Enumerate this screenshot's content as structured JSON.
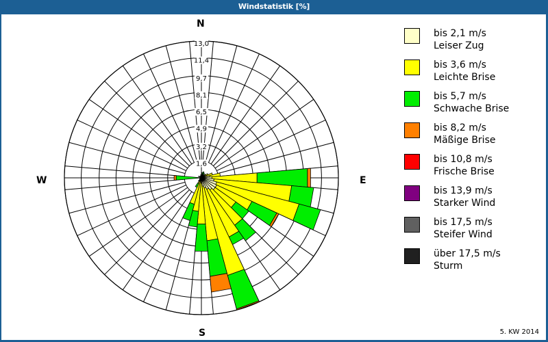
{
  "window": {
    "title": "Windstatistik [%]"
  },
  "footer": {
    "text": "5. KW 2014"
  },
  "compass": {
    "north": "N",
    "east": "E",
    "south": "S",
    "west": "W"
  },
  "chart_data": {
    "type": "wind-rose (polar stacked bar)",
    "title": "Windstatistik [%]",
    "unit": "%",
    "radial_max": 13.0,
    "ring_labels": [
      "1,6",
      "3,2",
      "4,9",
      "6,5",
      "8,1",
      "9,7",
      "11,4",
      "13,0"
    ],
    "ring_values": [
      1.6,
      3.2,
      4.9,
      6.5,
      8.1,
      9.7,
      11.4,
      13.0
    ],
    "sector_width_deg": 10,
    "spokes": 36,
    "grid": true,
    "legend_position": "right",
    "classes": [
      {
        "label": "bis 2,1 m/s",
        "name": "Leiser Zug",
        "color": "#ffffc8"
      },
      {
        "label": "bis 3,6 m/s",
        "name": "Leichte Brise",
        "color": "#ffff00"
      },
      {
        "label": "bis 5,7 m/s",
        "name": "Schwache Brise",
        "color": "#00ee00"
      },
      {
        "label": "bis 8,2 m/s",
        "name": "Mäßige Brise",
        "color": "#ff8000"
      },
      {
        "label": "bis 10,8 m/s",
        "name": "Frische Brise",
        "color": "#ff0000"
      },
      {
        "label": "bis 13,9 m/s",
        "name": "Starker Wind",
        "color": "#800080"
      },
      {
        "label": "bis 17,5 m/s",
        "name": "Steifer Wind",
        "color": "#606060"
      },
      {
        "label": "über 17,5 m/s",
        "name": "Sturm",
        "color": "#202020"
      }
    ],
    "sectors": [
      {
        "direction_deg": 10,
        "values": [
          0.2,
          0.1,
          0.2,
          0,
          0,
          0,
          0,
          0
        ]
      },
      {
        "direction_deg": 20,
        "values": [
          0.2,
          0.1,
          0.3,
          0,
          0,
          0,
          0,
          0
        ]
      },
      {
        "direction_deg": 30,
        "values": [
          0.2,
          0.1,
          0.2,
          0,
          0,
          0,
          0,
          0
        ]
      },
      {
        "direction_deg": 40,
        "values": [
          0.2,
          0.1,
          0,
          0,
          0,
          0,
          0,
          0
        ]
      },
      {
        "direction_deg": 50,
        "values": [
          0.3,
          0.2,
          0,
          0,
          0,
          0,
          0,
          0
        ]
      },
      {
        "direction_deg": 60,
        "values": [
          0.4,
          0.3,
          0,
          0,
          0,
          0,
          0,
          0
        ]
      },
      {
        "direction_deg": 70,
        "values": [
          0.5,
          0.6,
          0,
          0,
          0,
          0,
          0,
          0
        ]
      },
      {
        "direction_deg": 80,
        "values": [
          0.8,
          1.0,
          0,
          0,
          0,
          0,
          0,
          0
        ]
      },
      {
        "direction_deg": 90,
        "values": [
          1.0,
          4.3,
          4.8,
          0.3,
          0,
          0,
          0,
          0
        ]
      },
      {
        "direction_deg": 100,
        "values": [
          1.2,
          7.4,
          2.1,
          0,
          0,
          0,
          0,
          0
        ]
      },
      {
        "direction_deg": 110,
        "values": [
          1.5,
          8.1,
          2.1,
          0,
          0,
          0,
          0,
          0
        ]
      },
      {
        "direction_deg": 120,
        "values": [
          1.6,
          3.7,
          2.6,
          0.2,
          0,
          0,
          0,
          0
        ]
      },
      {
        "direction_deg": 130,
        "values": [
          1.6,
          2.4,
          1.5,
          0,
          0,
          0,
          0,
          0
        ]
      },
      {
        "direction_deg": 140,
        "values": [
          1.4,
          4.1,
          1.8,
          0,
          0,
          0,
          0,
          0
        ]
      },
      {
        "direction_deg": 150,
        "values": [
          1.2,
          5.0,
          0.8,
          0,
          0,
          0,
          0,
          0
        ]
      },
      {
        "direction_deg": 160,
        "values": [
          1.0,
          8.6,
          3.3,
          0.1,
          0,
          0,
          0,
          0
        ]
      },
      {
        "direction_deg": 170,
        "values": [
          0.8,
          5.2,
          3.4,
          1.5,
          0,
          0,
          0,
          0
        ]
      },
      {
        "direction_deg": 180,
        "values": [
          0.5,
          3.9,
          2.6,
          0,
          0,
          0,
          0,
          0
        ]
      },
      {
        "direction_deg": 190,
        "values": [
          0.3,
          2.9,
          1.5,
          0,
          0,
          0,
          0,
          0
        ]
      },
      {
        "direction_deg": 200,
        "values": [
          0.2,
          2.4,
          1.6,
          0,
          0,
          0,
          0,
          0
        ]
      },
      {
        "direction_deg": 210,
        "values": [
          0.1,
          0.5,
          0.4,
          0,
          0,
          0,
          0,
          0
        ]
      },
      {
        "direction_deg": 220,
        "values": [
          0.1,
          0.1,
          0.2,
          0,
          0,
          0,
          0,
          0
        ]
      },
      {
        "direction_deg": 240,
        "values": [
          0,
          0,
          0.2,
          0,
          0,
          0,
          0,
          0
        ]
      },
      {
        "direction_deg": 270,
        "values": [
          0,
          0.1,
          2.3,
          0.2,
          0,
          0,
          0,
          0
        ]
      },
      {
        "direction_deg": 300,
        "values": [
          0,
          0.1,
          0.2,
          0,
          0,
          0,
          0,
          0
        ]
      },
      {
        "direction_deg": 330,
        "values": [
          0,
          0.1,
          0.1,
          0,
          0,
          0,
          0,
          0
        ]
      },
      {
        "direction_deg": 350,
        "values": [
          0.1,
          0,
          0.2,
          0,
          0,
          0,
          0,
          0
        ]
      }
    ]
  }
}
